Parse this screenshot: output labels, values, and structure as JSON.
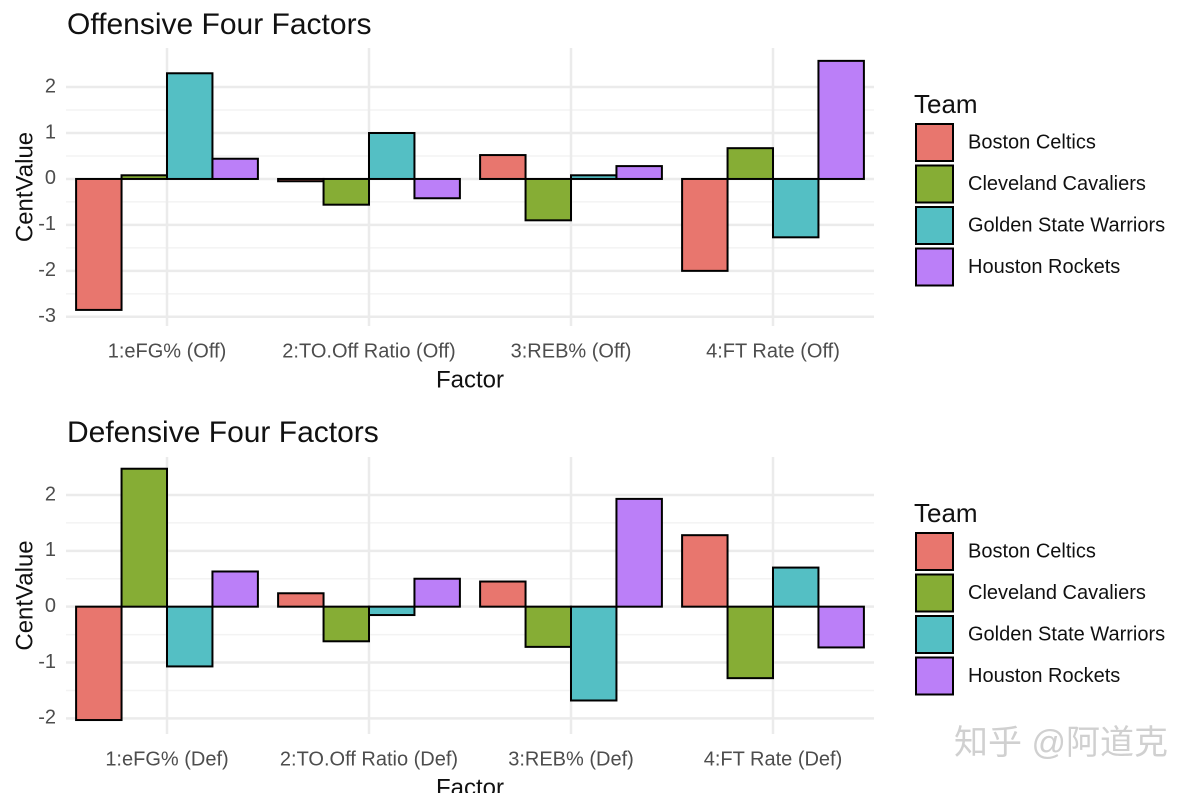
{
  "colors": {
    "Boston Celtics": "#E8766E",
    "Cleveland Cavaliers": "#86AD35",
    "Golden State Warriors": "#54BFC4",
    "Houston Rockets": "#BB7FF8"
  },
  "watermark": "知乎 @阿道克",
  "chart_data": [
    {
      "type": "bar",
      "title": "Offensive Four Factors",
      "xlabel": "Factor",
      "ylabel": "CentValue",
      "legend_title": "Team",
      "legend_position": "right",
      "grid": true,
      "ylim": [
        -3.2,
        2.85
      ],
      "yticks": [
        -3,
        -2,
        -1,
        0,
        1,
        2
      ],
      "categories": [
        "1:eFG% (Off)",
        "2:TO.Off Ratio (Off)",
        "3:REB% (Off)",
        "4:FT Rate (Off)"
      ],
      "series": [
        {
          "name": "Boston Celtics",
          "values": [
            -2.85,
            -0.05,
            0.52,
            -2.0
          ]
        },
        {
          "name": "Cleveland Cavaliers",
          "values": [
            0.08,
            -0.56,
            -0.9,
            0.67
          ]
        },
        {
          "name": "Golden State Warriors",
          "values": [
            2.3,
            1.0,
            0.08,
            -1.27
          ]
        },
        {
          "name": "Houston Rockets",
          "values": [
            0.44,
            -0.42,
            0.28,
            2.57
          ]
        }
      ]
    },
    {
      "type": "bar",
      "title": "Defensive Four Factors",
      "xlabel": "Factor",
      "ylabel": "CentValue",
      "legend_title": "Team",
      "legend_position": "right",
      "grid": true,
      "ylim": [
        -2.28,
        2.68
      ],
      "yticks": [
        -2,
        -1,
        0,
        1,
        2
      ],
      "categories": [
        "1:eFG% (Def)",
        "2:TO.Off Ratio (Def)",
        "3:REB% (Def)",
        "4:FT Rate (Def)"
      ],
      "series": [
        {
          "name": "Boston Celtics",
          "values": [
            -2.03,
            0.24,
            0.45,
            1.28
          ]
        },
        {
          "name": "Cleveland Cavaliers",
          "values": [
            2.47,
            -0.62,
            -0.72,
            -1.28
          ]
        },
        {
          "name": "Golden State Warriors",
          "values": [
            -1.07,
            -0.15,
            -1.68,
            0.7
          ]
        },
        {
          "name": "Houston Rockets",
          "values": [
            0.63,
            0.5,
            1.93,
            -0.73
          ]
        }
      ]
    }
  ]
}
